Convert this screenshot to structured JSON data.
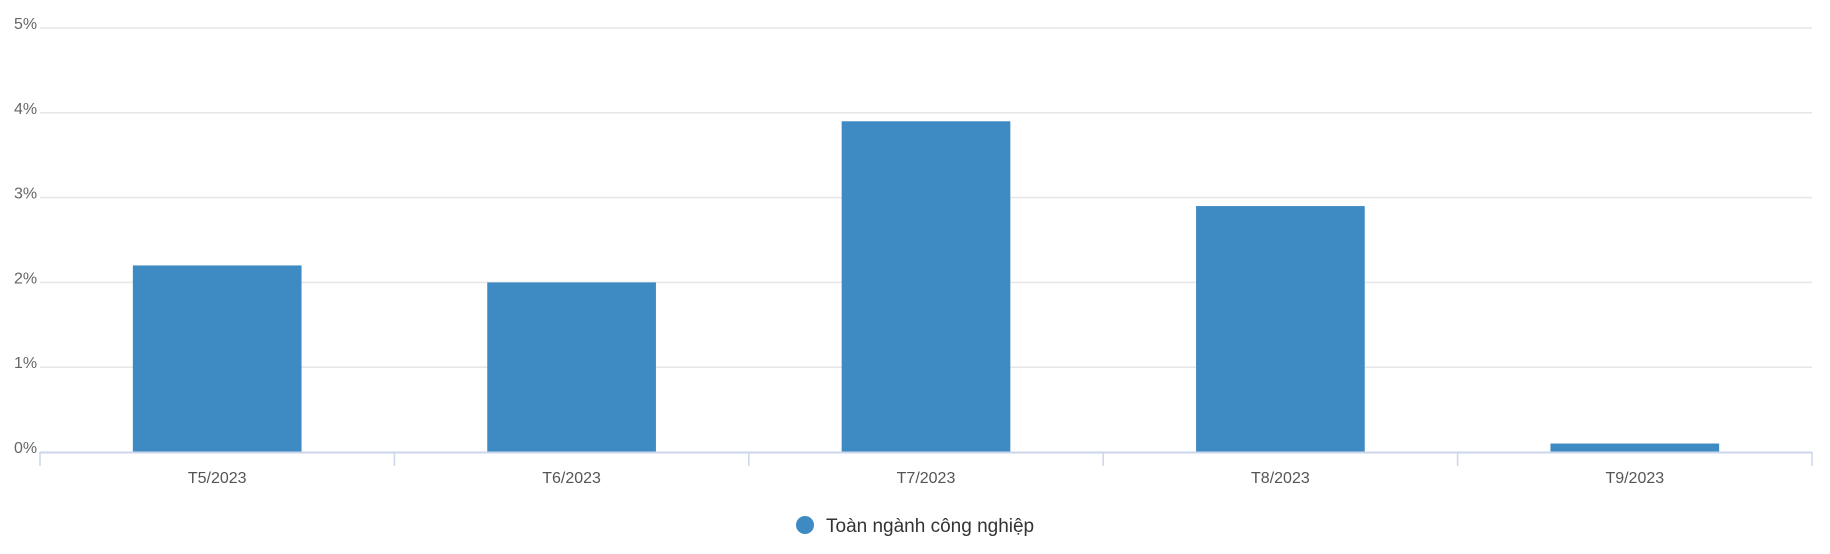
{
  "chart_data": {
    "type": "bar",
    "categories": [
      "T5/2023",
      "T6/2023",
      "T7/2023",
      "T8/2023",
      "T9/2023"
    ],
    "series": [
      {
        "name": "Toàn ngành công nghiệp",
        "values": [
          2.2,
          2.0,
          3.9,
          2.9,
          0.1
        ],
        "color": "#3e8bc3"
      }
    ],
    "ylim": [
      0,
      5
    ],
    "yticks": [
      0,
      1,
      2,
      3,
      4,
      5
    ],
    "ytick_labels": [
      "0%",
      "1%",
      "2%",
      "3%",
      "4%",
      "5%"
    ],
    "y_unit": "%",
    "grid": true,
    "legend_position": "bottom-center",
    "colors": {
      "grid": "#e6e6e6",
      "axis": "#ccd6eb",
      "bar": "#3e8bc3"
    }
  }
}
